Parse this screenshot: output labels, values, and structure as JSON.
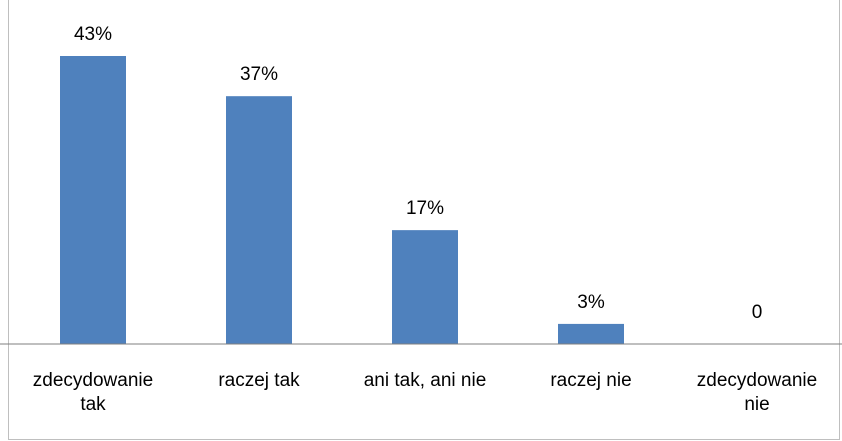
{
  "chart_data": {
    "type": "bar",
    "categories": [
      [
        "zdecydowanie",
        "tak"
      ],
      [
        "raczej tak"
      ],
      [
        "ani tak, ani nie"
      ],
      [
        "raczej nie"
      ],
      [
        "zdecydowanie",
        "nie"
      ]
    ],
    "values": [
      43,
      37,
      17,
      3,
      0
    ],
    "data_labels": [
      "43%",
      "37%",
      "17%",
      "3%",
      "0"
    ],
    "title": "",
    "xlabel": "",
    "ylabel": "",
    "ylim": [
      0,
      43
    ],
    "grid": false,
    "legend": "none",
    "bar_color": "#4F81BD",
    "axis_color": "#7f7f7f"
  }
}
